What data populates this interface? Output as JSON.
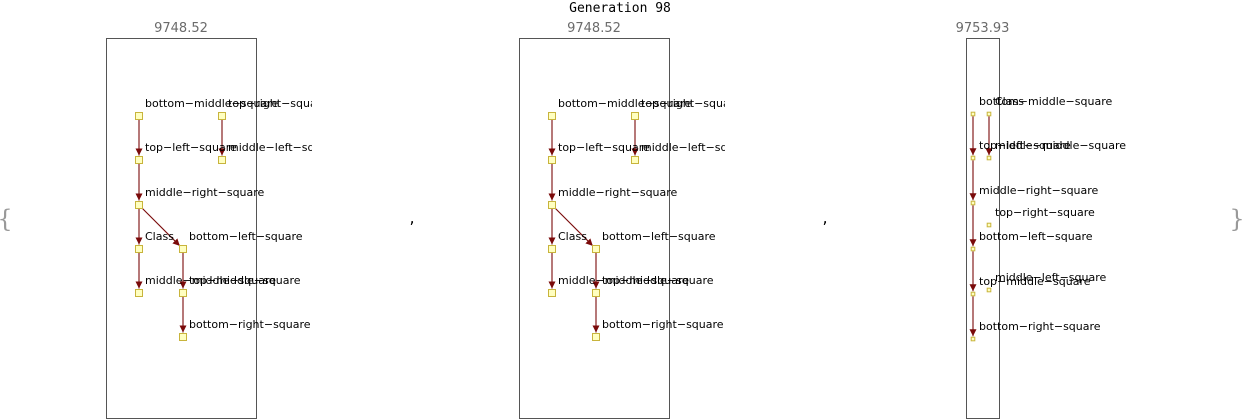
{
  "title": "Generation 98",
  "braces": {
    "open": "{",
    "close": "}"
  },
  "separator": ",",
  "panels": [
    {
      "score": "9748.52",
      "nodes": [
        {
          "id": "bms",
          "label": "bottom−middle−square"
        },
        {
          "id": "trs",
          "label": "top−right−square"
        },
        {
          "id": "tls",
          "label": "top−left−square"
        },
        {
          "id": "mls",
          "label": "middle−left−square"
        },
        {
          "id": "mrs",
          "label": "middle−right−square"
        },
        {
          "id": "cls",
          "label": "Class"
        },
        {
          "id": "bls",
          "label": "bottom−left−square"
        },
        {
          "id": "mms",
          "label": "middle−middle−square"
        },
        {
          "id": "tms",
          "label": "top−middle−square"
        },
        {
          "id": "brs",
          "label": "bottom−right−square"
        }
      ],
      "edges": [
        [
          "bms",
          "tls"
        ],
        [
          "trs",
          "mls"
        ],
        [
          "tls",
          "mrs"
        ],
        [
          "mrs",
          "cls"
        ],
        [
          "mrs",
          "bls"
        ],
        [
          "cls",
          "mms"
        ],
        [
          "bls",
          "tms"
        ],
        [
          "tms",
          "brs"
        ]
      ]
    },
    {
      "score": "9748.52",
      "nodes": [
        {
          "id": "bms",
          "label": "bottom−middle−square"
        },
        {
          "id": "trs",
          "label": "top−right−square"
        },
        {
          "id": "tls",
          "label": "top−left−square"
        },
        {
          "id": "mls",
          "label": "middle−left−square"
        },
        {
          "id": "mrs",
          "label": "middle−right−square"
        },
        {
          "id": "cls",
          "label": "Class"
        },
        {
          "id": "bls",
          "label": "bottom−left−square"
        },
        {
          "id": "mms",
          "label": "middle−middle−square"
        },
        {
          "id": "tms",
          "label": "top−middle−square"
        },
        {
          "id": "brs",
          "label": "bottom−right−square"
        }
      ],
      "edges": [
        [
          "bms",
          "tls"
        ],
        [
          "trs",
          "mls"
        ],
        [
          "tls",
          "mrs"
        ],
        [
          "mrs",
          "cls"
        ],
        [
          "mrs",
          "bls"
        ],
        [
          "cls",
          "mms"
        ],
        [
          "bls",
          "tms"
        ],
        [
          "tms",
          "brs"
        ]
      ]
    },
    {
      "score": "9753.93",
      "nodes": [
        {
          "id": "bms",
          "label": "bottom−middle−square"
        },
        {
          "id": "cls",
          "label": "Class"
        },
        {
          "id": "tls",
          "label": "top−left−square"
        },
        {
          "id": "mms",
          "label": "middle−middle−square"
        },
        {
          "id": "mrs",
          "label": "middle−right−square"
        },
        {
          "id": "trs",
          "label": "top−right−square"
        },
        {
          "id": "bls",
          "label": "bottom−left−square"
        },
        {
          "id": "mls",
          "label": "middle−left−square"
        },
        {
          "id": "tms",
          "label": "top−middle−square"
        },
        {
          "id": "brs",
          "label": "bottom−right−square"
        }
      ],
      "edges": [
        [
          "bms",
          "tls"
        ],
        [
          "cls",
          "mms"
        ],
        [
          "tls",
          "mrs"
        ],
        [
          "mrs",
          "bls"
        ],
        [
          "bls",
          "tms"
        ],
        [
          "tms",
          "brs"
        ]
      ]
    }
  ]
}
